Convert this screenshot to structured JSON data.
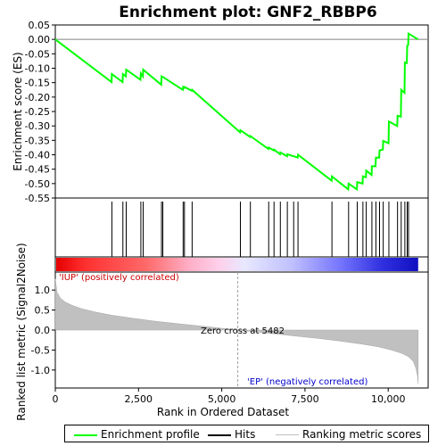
{
  "chart_data": {
    "type": "line",
    "title": "Enrichment plot: GNF2_RBBP6",
    "top_panel": {
      "ylabel": "Enrichment score (ES)",
      "ylim": [
        -0.55,
        0.05
      ],
      "yticks": [
        "0.05",
        "0.00",
        "-0.05",
        "-0.10",
        "-0.15",
        "-0.20",
        "-0.25",
        "-0.30",
        "-0.35",
        "-0.40",
        "-0.45",
        "-0.50",
        "-0.55"
      ],
      "ytick_values": [
        0.05,
        0.0,
        -0.05,
        -0.1,
        -0.15,
        -0.2,
        -0.25,
        -0.3,
        -0.35,
        -0.4,
        -0.45,
        -0.5,
        -0.55
      ],
      "series": [
        {
          "name": "Enrichment profile",
          "color": "#00ff00",
          "x": [
            0,
            1690,
            1700,
            2020,
            2030,
            2120,
            2130,
            2560,
            2570,
            2630,
            2640,
            3180,
            3190,
            3220,
            3230,
            3830,
            3840,
            3870,
            3880,
            4100,
            4110,
            5550,
            5560,
            5850,
            5860,
            6400,
            6410,
            6560,
            6570,
            6750,
            6760,
            6960,
            6970,
            7150,
            7160,
            7280,
            7290,
            8300,
            8310,
            8800,
            8810,
            9060,
            9070,
            9230,
            9240,
            9330,
            9340,
            9500,
            9510,
            9620,
            9630,
            9730,
            9740,
            9840,
            9850,
            10010,
            10020,
            10270,
            10280,
            10380,
            10390,
            10490,
            10500,
            10560,
            10570,
            10600,
            10610,
            10900
          ],
          "y": [
            0.0,
            -0.148,
            -0.12,
            -0.148,
            -0.12,
            -0.128,
            -0.105,
            -0.14,
            -0.118,
            -0.128,
            -0.105,
            -0.157,
            -0.128,
            -0.13,
            -0.13,
            -0.175,
            -0.165,
            -0.168,
            -0.165,
            -0.178,
            -0.175,
            -0.322,
            -0.315,
            -0.338,
            -0.335,
            -0.38,
            -0.375,
            -0.385,
            -0.382,
            -0.398,
            -0.392,
            -0.405,
            -0.398,
            -0.405,
            -0.405,
            -0.41,
            -0.4,
            -0.49,
            -0.475,
            -0.52,
            -0.5,
            -0.52,
            -0.495,
            -0.5,
            -0.475,
            -0.478,
            -0.455,
            -0.47,
            -0.44,
            -0.44,
            -0.41,
            -0.41,
            -0.385,
            -0.382,
            -0.352,
            -0.36,
            -0.285,
            -0.3,
            -0.265,
            -0.268,
            -0.175,
            -0.185,
            -0.08,
            -0.082,
            -0.022,
            -0.02,
            0.02,
            0.0
          ]
        }
      ],
      "hits_x": [
        1700,
        2030,
        2130,
        2570,
        2640,
        3190,
        3230,
        3840,
        3880,
        4110,
        5560,
        5860,
        6410,
        6570,
        6760,
        6970,
        7160,
        7290,
        8310,
        8810,
        9070,
        9240,
        9340,
        9510,
        9630,
        9740,
        9850,
        10020,
        10280,
        10390,
        10500,
        10570,
        10610
      ]
    },
    "bottom_panel": {
      "ylabel": "Ranked list metric (Signal2Noise)",
      "ylim": [
        -1.45,
        1.45
      ],
      "yticks": [
        "1.0",
        "0.5",
        "0.0",
        "-0.5",
        "-1.0"
      ],
      "ytick_values": [
        1.0,
        0.5,
        0.0,
        -0.5,
        -1.0
      ],
      "metric_x": [
        0,
        50,
        150,
        300,
        500,
        800,
        1200,
        1700,
        2300,
        3000,
        3800,
        4600,
        5482,
        6300,
        7100,
        7900,
        8600,
        9200,
        9700,
        10100,
        10400,
        10600,
        10750,
        10830,
        10880,
        10900
      ],
      "metric_y": [
        1.28,
        0.95,
        0.8,
        0.7,
        0.62,
        0.53,
        0.45,
        0.37,
        0.3,
        0.22,
        0.15,
        0.08,
        0.0,
        -0.07,
        -0.14,
        -0.21,
        -0.28,
        -0.35,
        -0.42,
        -0.5,
        -0.58,
        -0.66,
        -0.78,
        -0.95,
        -1.15,
        -1.35
      ],
      "zero_cross_label": "Zero cross at 5482",
      "zero_cross_x": 5482,
      "pos_label": "'IUP' (positively correlated)",
      "neg_label": "'EP' (negatively correlated)"
    },
    "xlabel": "Rank in Ordered Dataset",
    "xlim": [
      0,
      11200
    ],
    "xticks": [
      "0",
      "2,500",
      "5,000",
      "7,500",
      "10,000"
    ],
    "xtick_values": [
      0,
      2500,
      5000,
      7500,
      10000
    ],
    "dataset_size": 10900
  },
  "legend": {
    "items": [
      {
        "label": "Enrichment profile",
        "color": "#00ff00"
      },
      {
        "label": "Hits",
        "color": "#000000"
      },
      {
        "label": "Ranking metric scores",
        "color": "#c0c0c0"
      }
    ]
  }
}
